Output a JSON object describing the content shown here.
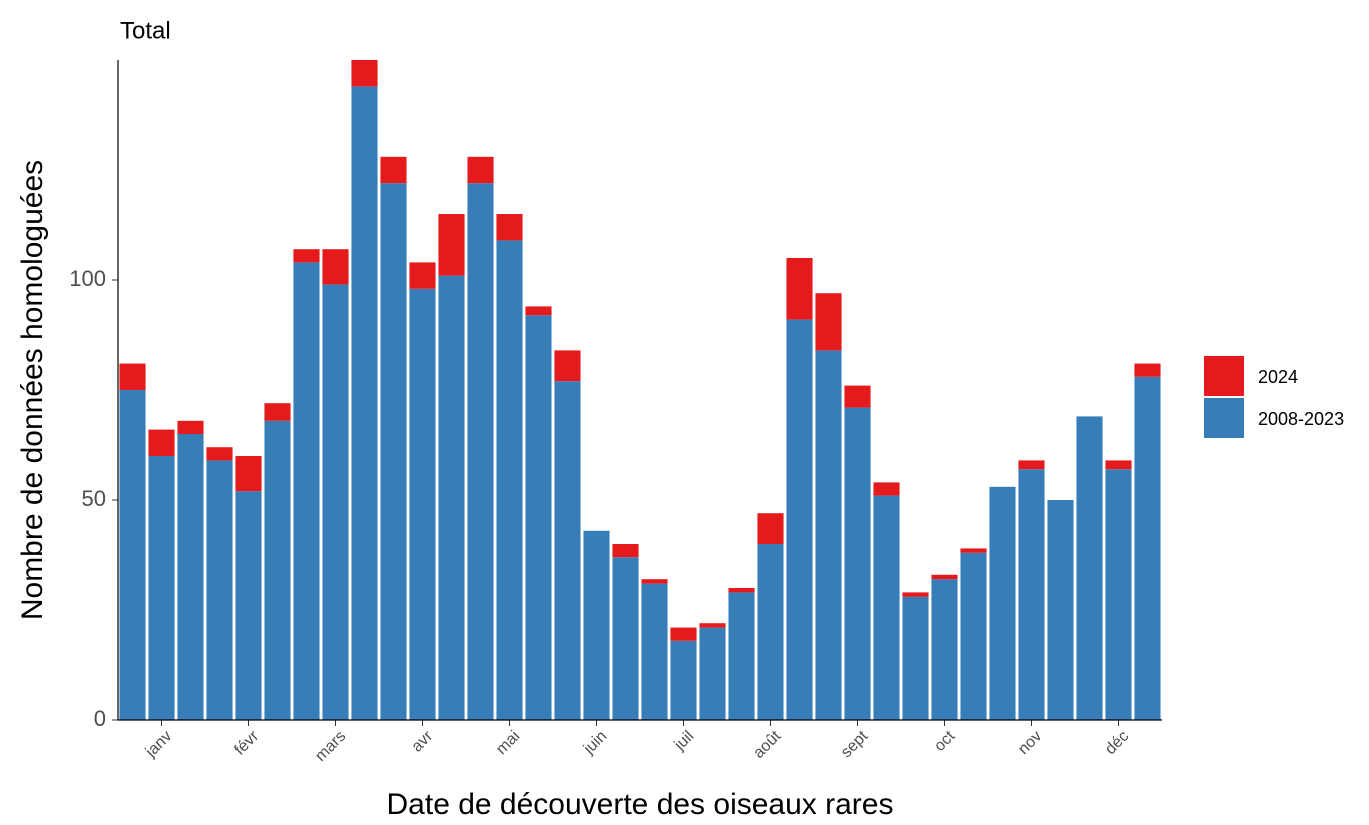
{
  "chart_data": {
    "type": "bar",
    "stacked": true,
    "title": "Total",
    "xlabel": "Date de découverte des oiseaux rares",
    "ylabel": "Nombre de données homologuées",
    "categories": [
      null,
      "janv",
      null,
      null,
      "févr",
      null,
      null,
      "mars",
      null,
      null,
      "avr",
      null,
      null,
      "mai",
      null,
      null,
      "juin",
      null,
      null,
      "juil",
      null,
      null,
      "août",
      null,
      null,
      "sept",
      null,
      null,
      "oct",
      null,
      null,
      "nov",
      null,
      null,
      "déc",
      null
    ],
    "series": [
      {
        "name": "2008-2023",
        "color": "#377eb8",
        "values": [
          75,
          60,
          65,
          59,
          52,
          68,
          104,
          99,
          144,
          122,
          98,
          101,
          122,
          109,
          92,
          77,
          43,
          37,
          31,
          18,
          21,
          29,
          40,
          91,
          84,
          71,
          51,
          28,
          32,
          38,
          53,
          57,
          50,
          69,
          57,
          78
        ]
      },
      {
        "name": "2024",
        "color": "#e41a1c",
        "values": [
          6,
          6,
          3,
          3,
          8,
          4,
          3,
          8,
          6,
          6,
          6,
          14,
          6,
          6,
          2,
          7,
          0,
          3,
          1,
          3,
          1,
          1,
          7,
          14,
          13,
          5,
          3,
          1,
          1,
          1,
          0,
          2,
          0,
          0,
          2,
          3
        ]
      }
    ],
    "ylim": [
      0,
      150
    ],
    "yticks": [
      0,
      50,
      100
    ],
    "grid": false,
    "legend": "right"
  }
}
